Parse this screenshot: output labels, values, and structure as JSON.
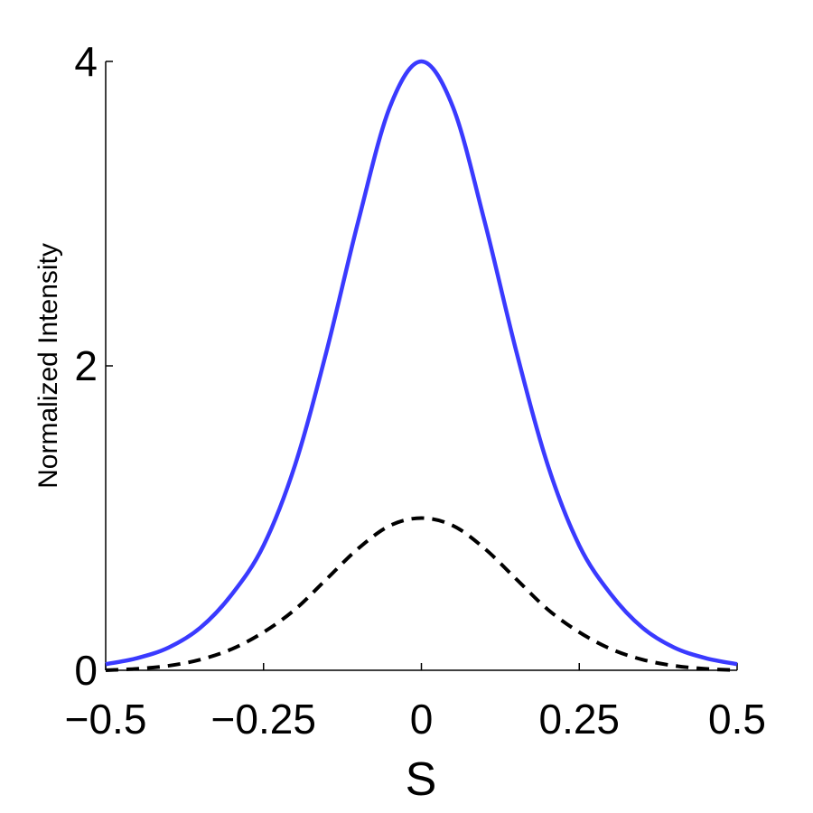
{
  "chart_data": {
    "type": "line",
    "title": "",
    "xlabel": "S",
    "ylabel": "Normalized Intensity",
    "xlim": [
      -0.5,
      0.5
    ],
    "ylim": [
      0,
      4
    ],
    "grid": false,
    "x_ticks": [
      {
        "value": -0.5,
        "label": "−0.5"
      },
      {
        "value": -0.25,
        "label": "−0.25"
      },
      {
        "value": 0,
        "label": "0"
      },
      {
        "value": 0.25,
        "label": "0.25"
      },
      {
        "value": 0.5,
        "label": "0.5"
      }
    ],
    "y_ticks": [
      {
        "value": 0,
        "label": "0"
      },
      {
        "value": 2,
        "label": "2"
      },
      {
        "value": 4,
        "label": "4"
      }
    ],
    "x": [
      -0.5,
      -0.45,
      -0.4,
      -0.35,
      -0.3,
      -0.25,
      -0.2,
      -0.15,
      -0.1,
      -0.05,
      0,
      0.05,
      0.1,
      0.15,
      0.2,
      0.25,
      0.3,
      0.35,
      0.4,
      0.45,
      0.5
    ],
    "series": [
      {
        "color": "#3a3aff",
        "style": "solid",
        "values": [
          0.04,
          0.08,
          0.15,
          0.28,
          0.5,
          0.82,
          1.35,
          2.1,
          2.95,
          3.7,
          4.0,
          3.7,
          2.95,
          2.1,
          1.35,
          0.82,
          0.5,
          0.28,
          0.15,
          0.08,
          0.04
        ]
      },
      {
        "color": "#000000",
        "style": "dashed",
        "values": [
          0.0,
          0.01,
          0.03,
          0.07,
          0.14,
          0.25,
          0.4,
          0.6,
          0.8,
          0.95,
          1.0,
          0.95,
          0.8,
          0.6,
          0.4,
          0.25,
          0.14,
          0.07,
          0.03,
          0.01,
          0.0
        ]
      }
    ]
  }
}
